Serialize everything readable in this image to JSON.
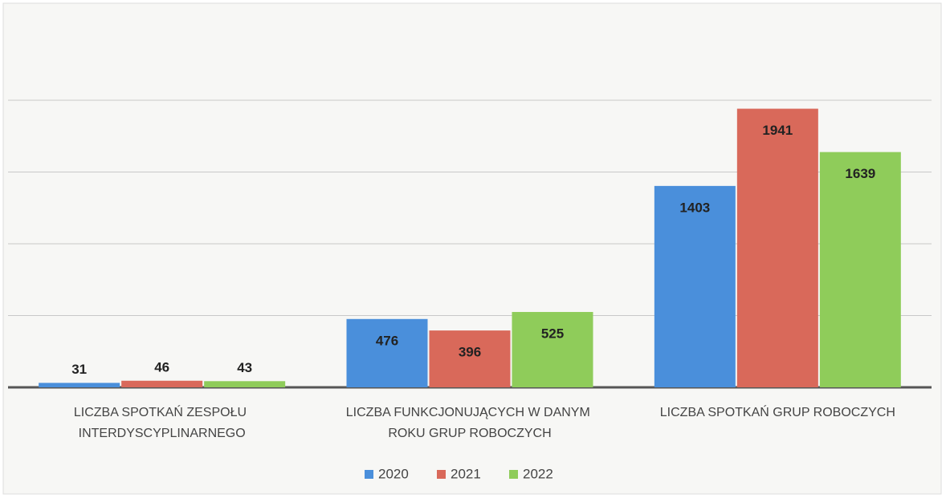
{
  "chart_data": {
    "type": "bar",
    "categories": [
      "LICZBA SPOTKAŃ ZESPOŁU INTERDYSCYPLINARNEGO",
      "LICZBA FUNKCJONUJĄCYCH W DANYM ROKU GRUP ROBOCZYCH",
      "LICZBA SPOTKAŃ GRUP ROBOCZYCH"
    ],
    "series": [
      {
        "name": "2020",
        "color": "#4a8fdb",
        "values": [
          31,
          476,
          1403
        ]
      },
      {
        "name": "2021",
        "color": "#d9695a",
        "values": [
          46,
          396,
          1941
        ]
      },
      {
        "name": "2022",
        "color": "#8fcc5a",
        "values": [
          43,
          525,
          1639
        ]
      }
    ],
    "ylim": [
      0,
      2000
    ],
    "yticks": [
      0,
      500,
      1000,
      1500,
      2000
    ],
    "grid": true,
    "legend": "bottom"
  }
}
